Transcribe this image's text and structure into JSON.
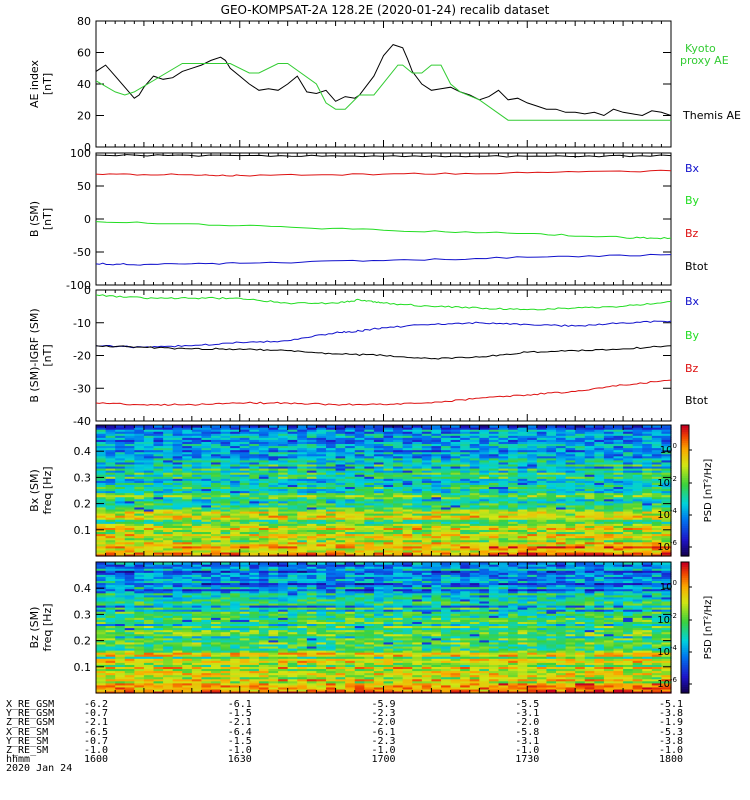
{
  "title": "GEO-KOMPSAT-2A 128.2E (2020-01-24) recalib dataset",
  "colors": {
    "black": "#000000",
    "green": "#22dd22",
    "red": "#dd1111",
    "blue": "#1111cc",
    "kyoto": "#33cc33"
  },
  "chart_data": [
    {
      "id": "ae",
      "type": "line",
      "ylabel": "AE index",
      "yunit": "[nT]",
      "ylim": [
        0,
        80
      ],
      "yticks": [
        0,
        20,
        40,
        60,
        80
      ],
      "legend": [
        {
          "name": "Kyoto proxy AE",
          "line1": "Kyoto",
          "line2": "proxy AE",
          "color": "#33cc33"
        },
        {
          "name": "Themis AE",
          "line1": "Themis AE",
          "color": "#000000"
        }
      ],
      "series": [
        {
          "name": "Themis AE",
          "color": "#000000",
          "x": [
            0,
            2,
            4,
            6,
            8,
            9,
            10,
            12,
            14,
            16,
            18,
            20,
            22,
            24,
            26,
            27,
            28,
            30,
            32,
            34,
            36,
            38,
            40,
            42,
            44,
            46,
            48,
            50,
            52,
            54,
            55,
            56,
            58,
            60,
            62,
            64,
            65,
            66,
            68,
            70,
            72,
            74,
            76,
            78,
            80,
            82,
            84,
            86,
            88,
            90,
            92,
            94,
            96,
            98,
            100,
            102,
            104,
            106,
            108,
            110,
            112,
            114,
            116,
            118,
            120
          ],
          "y": [
            48,
            52,
            45,
            38,
            31,
            33,
            38,
            45,
            43,
            44,
            48,
            50,
            52,
            55,
            57,
            55,
            50,
            45,
            40,
            36,
            37,
            36,
            40,
            45,
            35,
            34,
            36,
            29,
            32,
            31,
            33,
            37,
            45,
            58,
            65,
            63,
            56,
            48,
            40,
            36,
            37,
            38,
            35,
            33,
            30,
            32,
            36,
            30,
            31,
            28,
            26,
            24,
            24,
            22,
            22,
            21,
            22,
            20,
            24,
            22,
            21,
            20,
            23,
            22,
            20
          ]
        },
        {
          "name": "Kyoto proxy AE",
          "color": "#33cc33",
          "x": [
            0,
            4,
            6,
            8,
            18,
            28,
            32,
            34,
            38,
            40,
            46,
            48,
            50,
            52,
            55,
            58,
            63,
            64,
            66,
            68,
            70,
            72,
            74,
            76,
            80,
            86,
            90,
            120
          ],
          "y": [
            42,
            35,
            33,
            35,
            53,
            53,
            47,
            47,
            53,
            53,
            40,
            28,
            24,
            24,
            33,
            33,
            52,
            52,
            47,
            47,
            52,
            52,
            40,
            35,
            30,
            17,
            17,
            17
          ]
        }
      ]
    },
    {
      "id": "bsm",
      "type": "line",
      "ylabel": "B (SM)",
      "yunit": "[nT]",
      "ylim": [
        -100,
        100
      ],
      "yticks": [
        -100,
        -50,
        0,
        50,
        100
      ],
      "legend": [
        {
          "name": "Bx",
          "color": "#1111cc"
        },
        {
          "name": "By",
          "color": "#22dd22"
        },
        {
          "name": "Bz",
          "color": "#dd1111"
        },
        {
          "name": "Btot",
          "color": "#000000"
        }
      ],
      "series": [
        {
          "name": "Btot",
          "color": "#000000",
          "x": [
            0,
            30,
            60,
            90,
            120
          ],
          "y": [
            97,
            96,
            95,
            95,
            96
          ]
        },
        {
          "name": "Bz",
          "color": "#dd1111",
          "x": [
            0,
            20,
            30,
            60,
            90,
            120
          ],
          "y": [
            68,
            67,
            66,
            68,
            70,
            73
          ]
        },
        {
          "name": "By",
          "color": "#22dd22",
          "x": [
            0,
            30,
            60,
            90,
            110,
            120
          ],
          "y": [
            -4,
            -10,
            -17,
            -22,
            -28,
            -29
          ]
        },
        {
          "name": "Bx",
          "color": "#1111cc",
          "x": [
            0,
            10,
            30,
            60,
            90,
            120
          ],
          "y": [
            -68,
            -69,
            -67,
            -63,
            -58,
            -54
          ]
        }
      ]
    },
    {
      "id": "digrf",
      "type": "line",
      "ylabel": "B (SM)-IGRF (SM)",
      "yunit": "[nT]",
      "ylim": [
        -40,
        0
      ],
      "yticks": [
        -40,
        -30,
        -20,
        -10,
        0
      ],
      "legend": [
        {
          "name": "Bx",
          "color": "#1111cc"
        },
        {
          "name": "By",
          "color": "#22dd22"
        },
        {
          "name": "Bz",
          "color": "#dd1111"
        },
        {
          "name": "Btot",
          "color": "#000000"
        }
      ],
      "series": [
        {
          "name": "By",
          "color": "#22dd22",
          "x": [
            0,
            10,
            20,
            30,
            40,
            50,
            55,
            60,
            70,
            80,
            90,
            100,
            110,
            120
          ],
          "y": [
            -1.5,
            -2.5,
            -2.5,
            -2.5,
            -4,
            -4,
            -3,
            -4,
            -5,
            -5.5,
            -6,
            -5.5,
            -5,
            -3.5
          ]
        },
        {
          "name": "Bx",
          "color": "#1111cc",
          "x": [
            0,
            10,
            20,
            30,
            40,
            50,
            55,
            60,
            70,
            80,
            90,
            100,
            110,
            120
          ],
          "y": [
            -17,
            -17.5,
            -17,
            -16,
            -15.5,
            -13,
            -12.5,
            -11.5,
            -10.5,
            -10,
            -10.5,
            -11,
            -10,
            -9.5
          ]
        },
        {
          "name": "Btot",
          "color": "#000000",
          "x": [
            0,
            10,
            20,
            30,
            40,
            50,
            60,
            70,
            80,
            90,
            100,
            110,
            120
          ],
          "y": [
            -17,
            -17.5,
            -18,
            -18,
            -18.5,
            -19.5,
            -20,
            -21,
            -20.5,
            -19,
            -18.5,
            -18,
            -17
          ]
        },
        {
          "name": "Bz",
          "color": "#dd1111",
          "x": [
            0,
            10,
            20,
            30,
            40,
            50,
            60,
            70,
            80,
            90,
            100,
            110,
            120
          ],
          "y": [
            -34.5,
            -35,
            -35,
            -34.5,
            -34.5,
            -35,
            -35,
            -34.5,
            -33,
            -32,
            -31,
            -29,
            -27.5
          ]
        }
      ]
    },
    {
      "id": "specbx",
      "type": "heatmap",
      "ylabel": "Bx (SM)",
      "yunit": "freq [Hz]",
      "ylim": [
        0,
        0.5
      ],
      "yticks": [
        0.1,
        0.2,
        0.3,
        0.4
      ],
      "colorbar": {
        "label": "PSD [nT²/Hz]",
        "ticks": [
          "10^0",
          "10^-2",
          "10^-4",
          "10^-6"
        ]
      }
    },
    {
      "id": "specbz",
      "type": "heatmap",
      "ylabel": "Bz (SM)",
      "yunit": "freq [Hz]",
      "ylim": [
        0,
        0.5
      ],
      "yticks": [
        0.1,
        0.2,
        0.3,
        0.4
      ],
      "colorbar": {
        "label": "PSD [nT²/Hz]",
        "ticks": [
          "10^0",
          "10^-2",
          "10^-4",
          "10^-6"
        ]
      }
    }
  ],
  "ephemeris": {
    "rows": [
      {
        "label": "X_RE_GSM",
        "values": [
          "-6.2",
          "-6.1",
          "-5.9",
          "-5.5",
          "-5.1"
        ]
      },
      {
        "label": "Y_RE_GSM",
        "values": [
          "-0.7",
          "-1.5",
          "-2.3",
          "-3.1",
          "-3.8"
        ]
      },
      {
        "label": "Z_RE_GSM",
        "values": [
          "-2.1",
          "-2.1",
          "-2.0",
          "-2.0",
          "-1.9"
        ]
      },
      {
        "label": "X_RE_SM",
        "values": [
          "-6.5",
          "-6.4",
          "-6.1",
          "-5.8",
          "-5.3"
        ]
      },
      {
        "label": "Y_RE_SM",
        "values": [
          "-0.7",
          "-1.5",
          "-2.3",
          "-3.1",
          "-3.8"
        ]
      },
      {
        "label": "Z_RE_SM",
        "values": [
          "-1.0",
          "-1.0",
          "-1.0",
          "-1.0",
          "-1.0"
        ]
      },
      {
        "label": "hhmm",
        "values": [
          "1600",
          "1630",
          "1700",
          "1730",
          "1800"
        ]
      }
    ],
    "date": "2020 Jan 24"
  },
  "time_axis": {
    "minutes_start": 0,
    "minutes_end": 120,
    "major_minutes": [
      0,
      30,
      60,
      90,
      120
    ]
  }
}
